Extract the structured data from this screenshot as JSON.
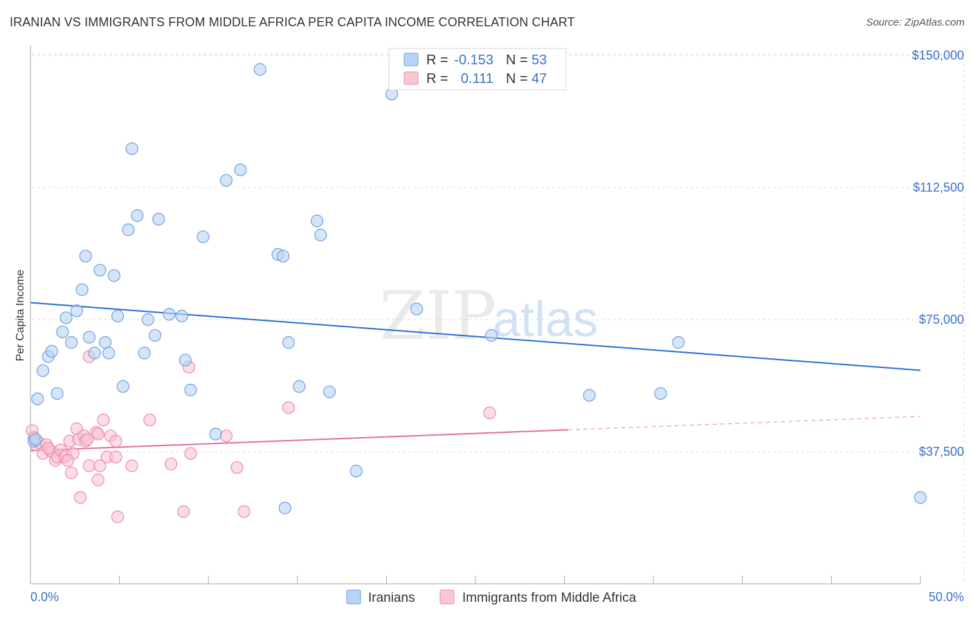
{
  "title": "IRANIAN VS IMMIGRANTS FROM MIDDLE AFRICA PER CAPITA INCOME CORRELATION CHART",
  "source": "Source: ZipAtlas.com",
  "watermark": {
    "zip": "ZIP",
    "atlas": "atlas"
  },
  "colors": {
    "blue_fill": "#b9d3f3",
    "blue_stroke": "#6fa0e0",
    "blue_line": "#2a6fcf",
    "pink_fill": "#f9c6d4",
    "pink_stroke": "#ee8aaa",
    "pink_line": "#e0709a",
    "tick_text": "#3a72c8",
    "grid": "#dddddd"
  },
  "legend": {
    "rows": [
      {
        "r_label": "R =",
        "r_value": "-0.153",
        "n_label": "N =",
        "n_value": "53"
      },
      {
        "r_label": "R =",
        "r_value": "0.111",
        "n_label": "N =",
        "n_value": "47"
      }
    ]
  },
  "chart_data": {
    "type": "scatter",
    "title": "IRANIAN VS IMMIGRANTS FROM MIDDLE AFRICA PER CAPITA INCOME CORRELATION CHART",
    "xlabel": "",
    "ylabel": "Per Capita Income",
    "xlim": [
      0,
      50
    ],
    "ylim": [
      0,
      157000
    ],
    "x_tick_labels": [
      "0.0%",
      "50.0%"
    ],
    "y_ticks": [
      37500,
      75000,
      112500,
      150000
    ],
    "y_tick_labels": [
      "$37,500",
      "$75,000",
      "$112,500",
      "$150,000"
    ],
    "grid": true,
    "legend_placement": "top-center",
    "series": [
      {
        "name": "Iranians",
        "trend": {
          "x": [
            0,
            50
          ],
          "y": [
            79800,
            60600
          ]
        },
        "points": [
          [
            0.2,
            40500
          ],
          [
            0.4,
            52500
          ],
          [
            0.7,
            60500
          ],
          [
            1.0,
            64500
          ],
          [
            1.2,
            66000
          ],
          [
            1.5,
            54000
          ],
          [
            1.8,
            71500
          ],
          [
            2.0,
            75500
          ],
          [
            2.3,
            68500
          ],
          [
            2.6,
            77500
          ],
          [
            2.9,
            83500
          ],
          [
            3.1,
            93000
          ],
          [
            3.3,
            70000
          ],
          [
            3.6,
            65500
          ],
          [
            3.9,
            89000
          ],
          [
            4.2,
            68500
          ],
          [
            4.4,
            65500
          ],
          [
            4.7,
            87500
          ],
          [
            4.9,
            76000
          ],
          [
            5.2,
            56000
          ],
          [
            5.5,
            100500
          ],
          [
            5.7,
            123500
          ],
          [
            6.0,
            104500
          ],
          [
            6.4,
            65500
          ],
          [
            6.6,
            75000
          ],
          [
            7.0,
            70500
          ],
          [
            7.2,
            103500
          ],
          [
            7.8,
            76500
          ],
          [
            8.5,
            76000
          ],
          [
            8.7,
            63500
          ],
          [
            9.0,
            55000
          ],
          [
            9.7,
            98500
          ],
          [
            10.4,
            42500
          ],
          [
            11.0,
            114500
          ],
          [
            11.8,
            117500
          ],
          [
            12.9,
            146000
          ],
          [
            13.9,
            93500
          ],
          [
            14.2,
            93000
          ],
          [
            14.3,
            21500
          ],
          [
            14.5,
            68500
          ],
          [
            15.1,
            56000
          ],
          [
            16.1,
            103000
          ],
          [
            16.3,
            99000
          ],
          [
            16.8,
            54500
          ],
          [
            18.3,
            32000
          ],
          [
            20.3,
            139000
          ],
          [
            21.7,
            78000
          ],
          [
            25.9,
            70500
          ],
          [
            31.4,
            53500
          ],
          [
            35.4,
            54000
          ],
          [
            36.4,
            68500
          ],
          [
            50.0,
            24500
          ],
          [
            0.3,
            41000
          ]
        ]
      },
      {
        "name": "Immigrants from Middle Africa",
        "trend": {
          "x": [
            0,
            30.2
          ],
          "y": [
            37800,
            43700
          ]
        },
        "trend_dashed": {
          "x": [
            30.2,
            50
          ],
          "y": [
            43700,
            47500
          ]
        },
        "points": [
          [
            0.1,
            43500
          ],
          [
            0.3,
            39500
          ],
          [
            0.5,
            40000
          ],
          [
            0.7,
            37000
          ],
          [
            0.9,
            39500
          ],
          [
            1.1,
            38000
          ],
          [
            1.2,
            37500
          ],
          [
            1.4,
            35000
          ],
          [
            1.5,
            36000
          ],
          [
            1.7,
            38000
          ],
          [
            1.9,
            36000
          ],
          [
            2.0,
            36500
          ],
          [
            2.2,
            40500
          ],
          [
            2.3,
            31500
          ],
          [
            2.4,
            37000
          ],
          [
            2.6,
            44000
          ],
          [
            2.7,
            41000
          ],
          [
            2.8,
            24500
          ],
          [
            3.0,
            42000
          ],
          [
            3.1,
            40500
          ],
          [
            3.2,
            41000
          ],
          [
            3.3,
            33500
          ],
          [
            3.3,
            64500
          ],
          [
            3.7,
            43000
          ],
          [
            3.8,
            42500
          ],
          [
            3.8,
            29500
          ],
          [
            3.9,
            33500
          ],
          [
            4.1,
            46500
          ],
          [
            4.3,
            36000
          ],
          [
            4.5,
            42000
          ],
          [
            4.8,
            40500
          ],
          [
            4.8,
            36000
          ],
          [
            4.9,
            19000
          ],
          [
            5.7,
            33500
          ],
          [
            6.7,
            46500
          ],
          [
            7.9,
            34000
          ],
          [
            8.6,
            20500
          ],
          [
            8.9,
            61500
          ],
          [
            9.0,
            37000
          ],
          [
            11.0,
            42000
          ],
          [
            11.6,
            33000
          ],
          [
            12.0,
            20500
          ],
          [
            14.5,
            50000
          ],
          [
            25.8,
            48500
          ],
          [
            0.2,
            41500
          ],
          [
            1.0,
            38500
          ],
          [
            2.1,
            35000
          ]
        ]
      }
    ]
  }
}
